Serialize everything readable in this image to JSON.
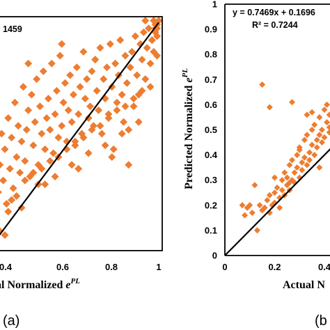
{
  "colors": {
    "marker": "#ED7D31",
    "axis": "#000000",
    "fit_line": "#000000"
  },
  "chart_data": [
    {
      "type": "scatter",
      "panel_label": "(a)",
      "xlabel_text": "al Normalized ",
      "xlabel_var": "e",
      "xlabel_sup": "PL",
      "xlim": [
        0.03,
        1.0
      ],
      "ylim": [
        0.4,
        1.0
      ],
      "xticks": [
        "0.4",
        "0.6",
        "0.8",
        "1"
      ],
      "annotation": "1459",
      "fit_line": {
        "x": [
          0.03,
          1.0
        ],
        "y": [
          0.43,
          0.985
        ]
      },
      "series": [
        {
          "x": [
            0.03,
            0.04,
            0.05,
            0.05,
            0.06,
            0.07,
            0.08,
            0.09,
            0.1,
            0.11,
            0.12,
            0.13,
            0.14,
            0.15,
            0.16,
            0.17,
            0.18,
            0.19,
            0.2,
            0.21,
            0.22,
            0.23,
            0.24,
            0.25,
            0.26,
            0.27,
            0.28,
            0.29,
            0.3,
            0.31,
            0.32,
            0.33,
            0.34,
            0.35,
            0.36,
            0.37,
            0.38,
            0.39,
            0.4,
            0.41,
            0.42,
            0.43,
            0.44,
            0.45,
            0.46,
            0.47,
            0.48,
            0.49,
            0.5,
            0.51,
            0.52,
            0.53,
            0.54,
            0.55,
            0.56,
            0.57,
            0.58,
            0.59,
            0.6,
            0.61,
            0.62,
            0.63,
            0.64,
            0.65,
            0.66,
            0.67,
            0.68,
            0.69,
            0.7,
            0.71,
            0.72,
            0.73,
            0.74,
            0.75,
            0.76,
            0.77,
            0.78,
            0.79,
            0.8,
            0.81,
            0.82,
            0.83,
            0.84,
            0.85,
            0.86,
            0.87,
            0.88,
            0.89,
            0.9,
            0.91,
            0.92,
            0.93,
            0.94,
            0.95,
            0.96,
            0.97,
            0.98,
            0.99,
            1.0,
            0.1,
            0.15,
            0.2,
            0.25,
            0.3,
            0.35,
            0.4,
            0.45,
            0.5,
            0.55,
            0.6,
            0.65,
            0.7,
            0.75,
            0.8,
            0.85,
            0.9,
            0.95,
            0.99,
            0.08,
            0.18,
            0.28,
            0.38,
            0.48,
            0.58,
            0.68,
            0.78,
            0.88,
            0.98,
            0.12,
            0.22,
            0.32,
            0.42,
            0.52,
            0.62,
            0.72,
            0.82,
            0.92,
            0.97,
            0.99,
            0.98,
            0.96,
            0.99
          ],
          "y": [
            0.48,
            0.55,
            0.62,
            0.45,
            0.7,
            0.58,
            0.66,
            0.52,
            0.74,
            0.61,
            0.69,
            0.56,
            0.78,
            0.64,
            0.72,
            0.6,
            0.68,
            0.82,
            0.63,
            0.71,
            0.76,
            0.59,
            0.8,
            0.67,
            0.73,
            0.84,
            0.62,
            0.77,
            0.7,
            0.86,
            0.66,
            0.74,
            0.79,
            0.71,
            0.88,
            0.65,
            0.75,
            0.81,
            0.69,
            0.9,
            0.72,
            0.78,
            0.83,
            0.68,
            0.76,
            0.85,
            0.73,
            0.8,
            0.67,
            0.87,
            0.75,
            0.82,
            0.7,
            0.91,
            0.79,
            0.84,
            0.74,
            0.77,
            0.86,
            0.72,
            0.89,
            0.81,
            0.76,
            0.92,
            0.7,
            0.84,
            0.79,
            0.87,
            0.75,
            0.93,
            0.82,
            0.66,
            0.88,
            0.78,
            0.85,
            0.94,
            0.8,
            0.73,
            0.9,
            0.83,
            0.62,
            0.87,
            0.91,
            0.77,
            0.95,
            0.85,
            0.8,
            0.93,
            0.89,
            0.96,
            0.84,
            0.92,
            0.97,
            0.88,
            0.94,
            0.91,
            0.98,
            0.95,
            0.99,
            0.5,
            0.54,
            0.58,
            0.6,
            0.61,
            0.63,
            0.64,
            0.66,
            0.68,
            0.69,
            0.71,
            0.72,
            0.74,
            0.76,
            0.77,
            0.79,
            0.81,
            0.82,
            0.9,
            0.44,
            0.51,
            0.57,
            0.59,
            0.62,
            0.65,
            0.67,
            0.7,
            0.73,
            0.97,
            0.53,
            0.88,
            0.57,
            0.93,
            0.61,
            0.89,
            0.64,
            0.71,
            0.99,
            0.99,
            0.97,
            0.96,
            0.94,
            0.98
          ]
        }
      ]
    },
    {
      "type": "scatter",
      "panel_label": "(b",
      "ylabel_text": "Predicted Normalized ",
      "ylabel_var": "e",
      "ylabel_sup": "PL",
      "xlabel_text": "Actual N",
      "xlim": [
        0,
        0.46
      ],
      "ylim": [
        0,
        1.0
      ],
      "xticks": [
        "0",
        "0.2",
        "0.4"
      ],
      "yticks": [
        "0",
        "0.1",
        "0.2",
        "0.3",
        "0.4",
        "0.5",
        "0.6",
        "0.7",
        "0.8",
        "0.9",
        "1"
      ],
      "equation": "y = 0.7469x + 0.1696",
      "r_squared": "R² = 0.7244",
      "fit_line": {
        "x": [
          0,
          0.46
        ],
        "y": [
          0,
          0.46
        ]
      },
      "series": [
        {
          "x": [
            0.07,
            0.08,
            0.09,
            0.1,
            0.12,
            0.13,
            0.14,
            0.15,
            0.16,
            0.17,
            0.18,
            0.18,
            0.19,
            0.2,
            0.2,
            0.21,
            0.22,
            0.22,
            0.23,
            0.23,
            0.24,
            0.24,
            0.25,
            0.25,
            0.26,
            0.26,
            0.27,
            0.27,
            0.28,
            0.28,
            0.29,
            0.29,
            0.3,
            0.3,
            0.31,
            0.31,
            0.32,
            0.32,
            0.33,
            0.33,
            0.34,
            0.34,
            0.35,
            0.35,
            0.36,
            0.36,
            0.37,
            0.37,
            0.38,
            0.38,
            0.39,
            0.39,
            0.4,
            0.4,
            0.41,
            0.41,
            0.42,
            0.42,
            0.43,
            0.43,
            0.44,
            0.44,
            0.45,
            0.15,
            0.18,
            0.27,
            0.3,
            0.35,
            0.38,
            0.42,
            0.11,
            0.2,
            0.26,
            0.33,
            0.45,
            0.45
          ],
          "y": [
            0.2,
            0.16,
            0.19,
            0.2,
            0.28,
            0.1,
            0.2,
            0.18,
            0.19,
            0.22,
            0.24,
            0.17,
            0.2,
            0.25,
            0.21,
            0.27,
            0.23,
            0.19,
            0.3,
            0.26,
            0.24,
            0.33,
            0.28,
            0.31,
            0.36,
            0.26,
            0.3,
            0.38,
            0.29,
            0.33,
            0.4,
            0.35,
            0.31,
            0.42,
            0.37,
            0.34,
            0.46,
            0.39,
            0.36,
            0.48,
            0.41,
            0.38,
            0.5,
            0.44,
            0.4,
            0.52,
            0.46,
            0.43,
            0.55,
            0.48,
            0.45,
            0.5,
            0.58,
            0.47,
            0.53,
            0.6,
            0.51,
            0.56,
            0.63,
            0.54,
            0.58,
            0.66,
            0.62,
            0.68,
            0.59,
            0.61,
            0.43,
            0.57,
            0.35,
            0.49,
            0.17,
            0.31,
            0.29,
            0.56,
            0.79,
            0.84
          ]
        }
      ]
    }
  ]
}
